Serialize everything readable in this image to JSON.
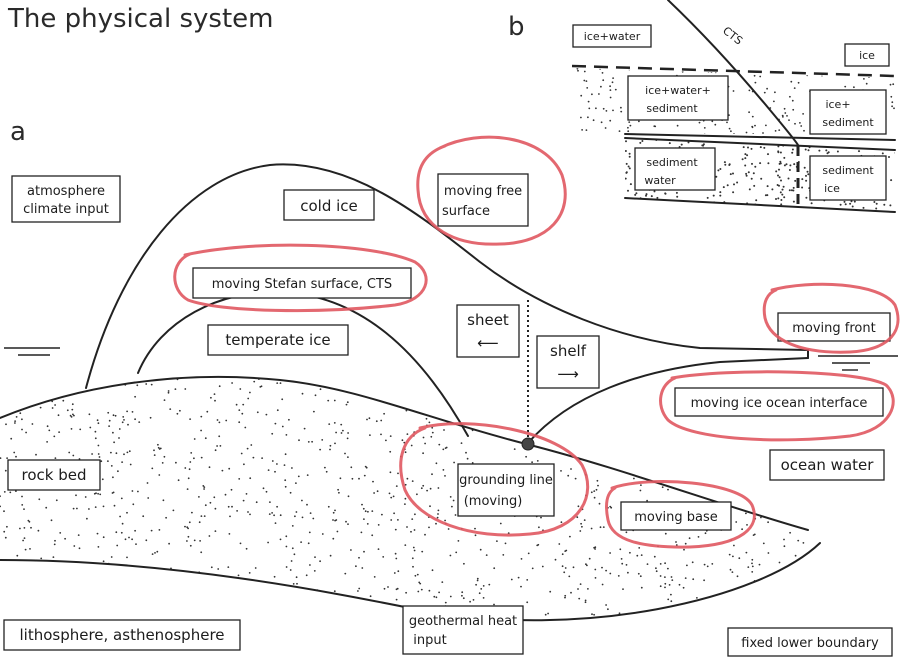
{
  "title": "The physical system",
  "panel_a": {
    "letter": "a",
    "labels": {
      "atmosphere_line1": "atmosphere",
      "atmosphere_line2": "climate input",
      "cold_ice": "cold ice",
      "moving_free_surface_line1": "moving free",
      "moving_free_surface_line2": "surface",
      "moving_stefan_surface": "moving Stefan surface, CTS",
      "temperate_ice": "temperate ice",
      "sheet": "sheet",
      "sheet_arrow": "⟵",
      "shelf": "shelf",
      "shelf_arrow": "⟶",
      "moving_front": "moving front",
      "moving_ice_ocean_interface": "moving ice ocean interface",
      "rock_bed": "rock bed",
      "grounding_line_line1": "grounding line",
      "grounding_line_line2": "(moving)",
      "ocean_water": "ocean water",
      "moving_base": "moving base",
      "lithosphere": "lithosphere, asthenosphere",
      "geothermal_line1": "geothermal heat",
      "geothermal_line2": "input",
      "fixed_lower_boundary": "fixed lower boundary"
    }
  },
  "panel_b": {
    "letter": "b",
    "labels": {
      "ice_water": "ice+water",
      "cts": "CTS",
      "ice": "ice",
      "ice_water_sediment_line1": "ice+water+",
      "ice_water_sediment_line2": "sediment",
      "ice_sediment_line1": "ice+",
      "ice_sediment_line2": "sediment",
      "sediment_water_line1": "sediment",
      "sediment_water_line2": "water",
      "sediment_ice_line1": "sediment",
      "sediment_ice_line2": "ice"
    }
  },
  "colors": {
    "ink": "#222222",
    "highlight": "#e05860",
    "background": "#ffffff"
  }
}
